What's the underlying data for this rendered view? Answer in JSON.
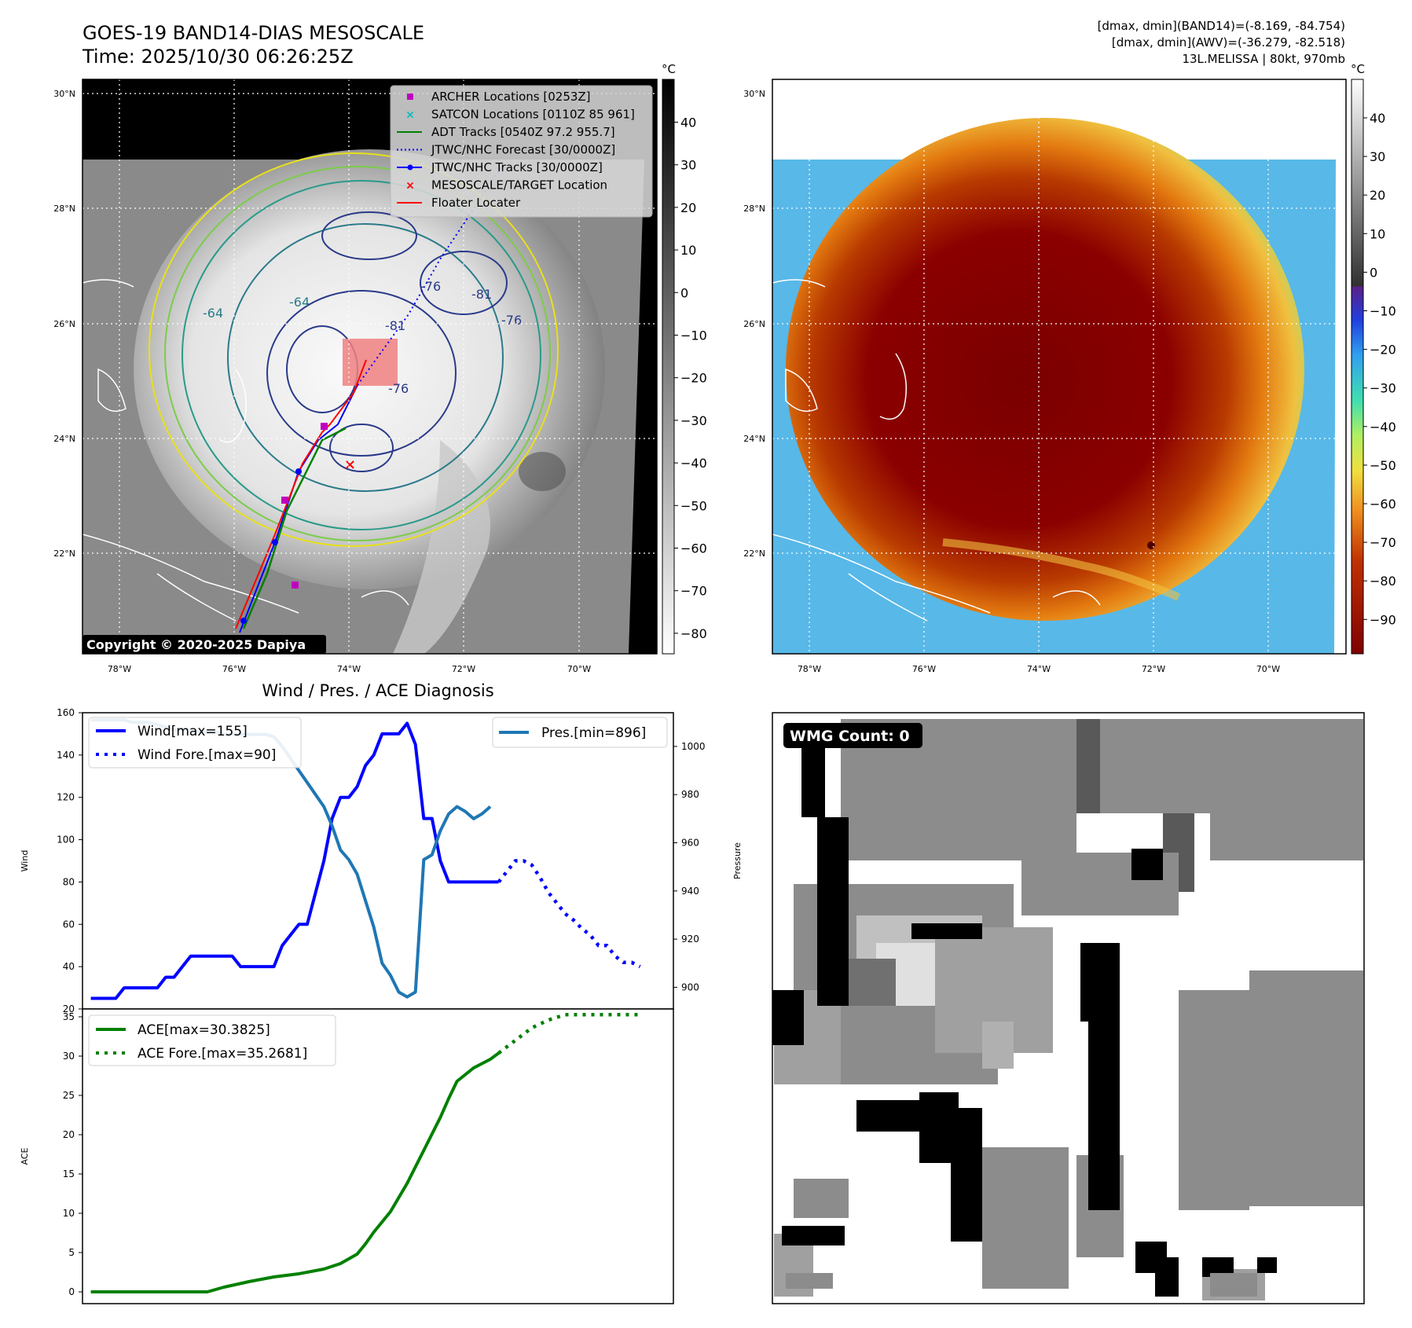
{
  "header": {
    "title": "GOES-19 BAND14-DIAS MESOSCALE",
    "time": "Time: 2025/10/30 06:26:25Z",
    "stats_band14": "[dmax, dmin](BAND14)=(-8.169, -84.754)",
    "stats_awv": "[dmax, dmin](AWV)=(-36.279, -82.518)",
    "storm": "13L.MELISSA | 80kt, 970mb"
  },
  "map": {
    "lat_labels": [
      "30°N",
      "28°N",
      "26°N",
      "24°N",
      "22°N"
    ],
    "lon_labels": [
      "78°W",
      "76°W",
      "74°W",
      "72°W",
      "70°W"
    ],
    "copyright": "Copyright © 2020-2025 Dapiya",
    "contour_labels": [
      "-81",
      "-76",
      "-64",
      "-81",
      "-76",
      "-76",
      "-64"
    ],
    "legend": [
      {
        "label": "ARCHER Locations [0253Z]",
        "color": "#c000c0",
        "marker": "square"
      },
      {
        "label": "SATCON Locations [0110Z 85 961]",
        "color": "#00bfbf",
        "marker": "x"
      },
      {
        "label": "ADT Tracks [0540Z 97.2 955.7]",
        "color": "#008000",
        "marker": "line"
      },
      {
        "label": "JTWC/NHC Forecast [30/0000Z]",
        "color": "#0000ff",
        "marker": "dotted"
      },
      {
        "label": "JTWC/NHC Tracks [30/0000Z]",
        "color": "#0000ff",
        "marker": "line-dot"
      },
      {
        "label": "MESOSCALE/TARGET Location",
        "color": "#ff0000",
        "marker": "x"
      },
      {
        "label": "Floater Locater",
        "color": "#ff0000",
        "marker": "line"
      }
    ]
  },
  "colorbar_gray": {
    "unit": "°C",
    "ticks": [
      "40",
      "30",
      "20",
      "10",
      "0",
      "−10",
      "−20",
      "−30",
      "−40",
      "−50",
      "−60",
      "−70",
      "−80"
    ]
  },
  "colorbar_color": {
    "unit": "°C",
    "ticks": [
      "40",
      "30",
      "20",
      "10",
      "0",
      "−10",
      "−20",
      "−30",
      "−40",
      "−50",
      "−60",
      "−70",
      "−80",
      "−90"
    ]
  },
  "wmg": {
    "label": "WMG Count: 0"
  },
  "colors": {
    "wind": "#0000ff",
    "pressure": "#1f77b4",
    "ace": "#008000"
  },
  "chart_data": [
    {
      "type": "line",
      "title": "Wind / Pres. / ACE Diagnosis",
      "xlabel": "",
      "ylabel": "Wind",
      "ylabel_right": "Pressure",
      "ylim": [
        20,
        160
      ],
      "ylim_right": [
        891,
        1014
      ],
      "xlim": [
        -1,
        70
      ],
      "yticks": [
        20,
        40,
        60,
        80,
        100,
        120,
        140,
        160
      ],
      "yticks_right": [
        900,
        920,
        940,
        960,
        980,
        1000
      ],
      "series": [
        {
          "name": "Wind[max=155]",
          "axis": "left",
          "style": "solid",
          "x": [
            0,
            3,
            4,
            5,
            6,
            7,
            8,
            9,
            10,
            11,
            12,
            13,
            14,
            15,
            16,
            17,
            18,
            19,
            20,
            21,
            22,
            23,
            24,
            25,
            26,
            27,
            28,
            29,
            30,
            31,
            32,
            33,
            34,
            35,
            36,
            37,
            38,
            39,
            40,
            41,
            42,
            43,
            44,
            45,
            46,
            47,
            48,
            49
          ],
          "values": [
            25,
            25,
            30,
            30,
            30,
            30,
            30,
            35,
            35,
            40,
            45,
            45,
            45,
            45,
            45,
            45,
            40,
            40,
            40,
            40,
            40,
            50,
            55,
            60,
            60,
            75,
            90,
            110,
            120,
            120,
            125,
            135,
            140,
            150,
            150,
            150,
            155,
            145,
            110,
            110,
            90,
            80,
            80,
            80,
            80,
            80,
            80,
            80
          ]
        },
        {
          "name": "Wind Fore.[max=90]",
          "axis": "left",
          "style": "dotted",
          "x": [
            49,
            50,
            51,
            52,
            53,
            54,
            55,
            56,
            57,
            58,
            59,
            60,
            61,
            62,
            63,
            64,
            65,
            66
          ],
          "values": [
            80,
            85,
            90,
            90,
            88,
            82,
            75,
            70,
            65,
            62,
            58,
            55,
            50,
            50,
            45,
            42,
            42,
            40
          ]
        },
        {
          "name": "Pres.[min=896]",
          "axis": "right",
          "style": "solid",
          "x": [
            0,
            3,
            4,
            5,
            6,
            7,
            8,
            9,
            10,
            11,
            12,
            13,
            14,
            15,
            16,
            17,
            18,
            19,
            20,
            21,
            22,
            23,
            24,
            25,
            26,
            27,
            28,
            29,
            30,
            31,
            32,
            33,
            34,
            35,
            36,
            37,
            38,
            39,
            40,
            41,
            42,
            43,
            44,
            45,
            46,
            47,
            48
          ],
          "values": [
            1011,
            1011,
            1011,
            1010,
            1010,
            1010,
            1009,
            1008,
            1007,
            1007,
            1007,
            1006,
            1006,
            1006,
            1005,
            1005,
            1005,
            1005,
            1005,
            1005,
            1004,
            1000,
            995,
            990,
            985,
            980,
            975,
            967,
            957,
            953,
            947,
            936,
            925,
            910,
            905,
            898,
            896,
            898,
            953,
            955,
            965,
            972,
            975,
            973,
            970,
            972,
            975
          ]
        }
      ]
    },
    {
      "type": "line",
      "title": "",
      "xlabel": "",
      "ylabel": "ACE",
      "ylim": [
        -1.5,
        36
      ],
      "xlim": [
        -1,
        70
      ],
      "yticks": [
        0,
        5,
        10,
        15,
        20,
        25,
        30,
        35
      ],
      "series": [
        {
          "name": "ACE[max=30.3825]",
          "axis": "left",
          "style": "solid",
          "x": [
            0,
            5,
            10,
            14,
            16,
            19,
            22,
            25,
            28,
            30,
            32,
            33,
            34,
            36,
            38,
            40,
            42,
            43,
            44,
            46,
            48,
            49
          ],
          "values": [
            0,
            0,
            0,
            0,
            0.6,
            1.3,
            1.9,
            2.3,
            2.9,
            3.6,
            4.8,
            6.1,
            7.6,
            10.2,
            13.8,
            18,
            22.2,
            24.6,
            26.8,
            28.5,
            29.6,
            30.38
          ]
        },
        {
          "name": "ACE Fore.[max=35.2681]",
          "axis": "left",
          "style": "dotted",
          "x": [
            49,
            51,
            53,
            55,
            57,
            59,
            62,
            66
          ],
          "values": [
            30.38,
            32,
            33.6,
            34.6,
            35.27,
            35.27,
            35.27,
            35.27
          ]
        }
      ]
    }
  ]
}
